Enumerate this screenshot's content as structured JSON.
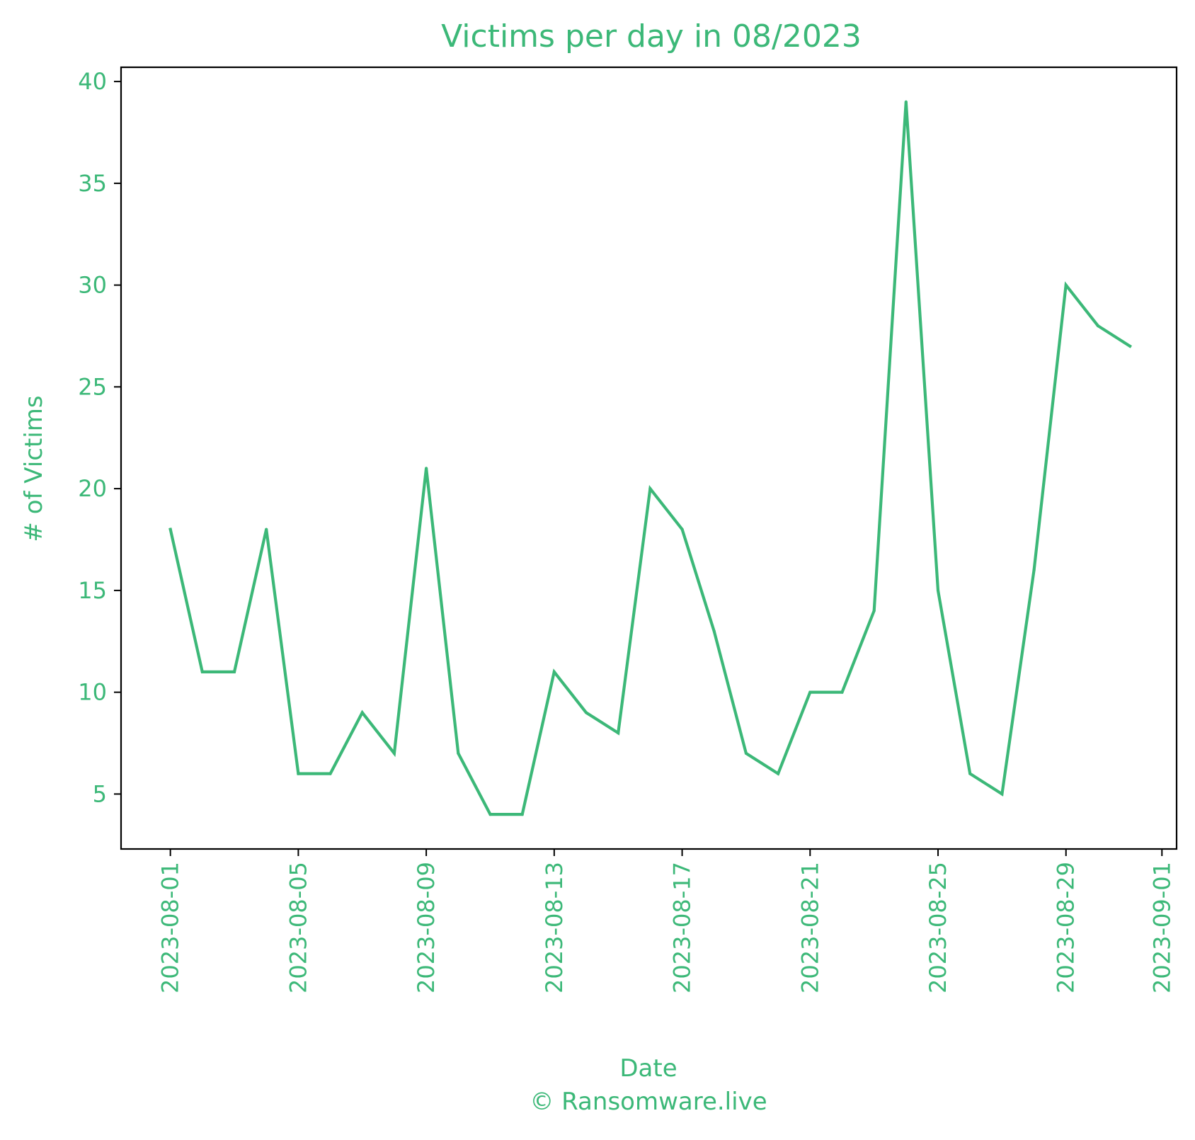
{
  "chart_data": {
    "type": "line",
    "title": "Victims per day in 08/2023",
    "xlabel": "Date",
    "ylabel": "# of Victims",
    "credit": "© Ransomware.live",
    "color": "#3cb878",
    "x_ticks": [
      "2023-08-01",
      "2023-08-05",
      "2023-08-09",
      "2023-08-13",
      "2023-08-17",
      "2023-08-21",
      "2023-08-25",
      "2023-08-29",
      "2023-09-01"
    ],
    "y_ticks": [
      5,
      10,
      15,
      20,
      25,
      30,
      35,
      40
    ],
    "xlim": [
      "2023-07-30T11:00",
      "2023-09-01T11:00"
    ],
    "ylim": [
      2.3,
      40.7
    ],
    "grid": false,
    "legend": "none",
    "series": [
      {
        "x": [
          "2023-08-01",
          "2023-08-02",
          "2023-08-03",
          "2023-08-04",
          "2023-08-05",
          "2023-08-06",
          "2023-08-07",
          "2023-08-08",
          "2023-08-09",
          "2023-08-10",
          "2023-08-11",
          "2023-08-12",
          "2023-08-13",
          "2023-08-14",
          "2023-08-15",
          "2023-08-16",
          "2023-08-17",
          "2023-08-18",
          "2023-08-19",
          "2023-08-20",
          "2023-08-21",
          "2023-08-22",
          "2023-08-23",
          "2023-08-24",
          "2023-08-25",
          "2023-08-26",
          "2023-08-27",
          "2023-08-28",
          "2023-08-29",
          "2023-08-30",
          "2023-08-31"
        ],
        "values": [
          18,
          11,
          11,
          18,
          6,
          6,
          9,
          7,
          21,
          7,
          4,
          4,
          11,
          9,
          8,
          20,
          18,
          13,
          7,
          6,
          10,
          10,
          14,
          39,
          15,
          6,
          5,
          16,
          30,
          28,
          27
        ]
      }
    ]
  }
}
